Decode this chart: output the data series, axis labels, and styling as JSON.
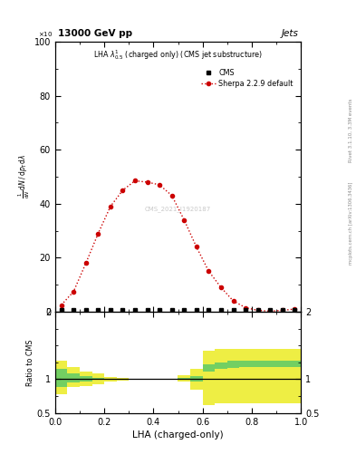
{
  "title_left": "13000 GeV pp",
  "title_right": "Jets",
  "plot_title": "LHA $\\lambda^{1}_{0.5}$ (charged only) (CMS jet substructure)",
  "watermark": "CMS_2021_I1920187",
  "rivet_label": "Rivet 3.1.10, 3.3M events",
  "mcplots_label": "mcplots.cern.ch [arXiv:1306.3436]",
  "xlabel": "LHA (charged-only)",
  "ylabel": "$\\frac{1}{\\mathrm{d}N}\\,/\\,\\mathrm{d}p_\\mathrm{T}\\,\\mathrm{d}N\\,/\\,\\mathrm{d}\\lambda$",
  "ylabel2": "Ratio to CMS",
  "xlim": [
    0,
    1
  ],
  "ylim_main": [
    0,
    100
  ],
  "ylim_ratio": [
    0.5,
    2.0
  ],
  "cms_x": [
    0.025,
    0.075,
    0.125,
    0.175,
    0.225,
    0.275,
    0.325,
    0.375,
    0.425,
    0.475,
    0.525,
    0.575,
    0.625,
    0.675,
    0.725,
    0.775,
    0.825,
    0.875,
    0.925,
    0.975
  ],
  "cms_y": [
    0.5,
    0.5,
    0.5,
    0.5,
    0.5,
    0.5,
    0.5,
    0.5,
    0.5,
    0.5,
    0.5,
    0.5,
    0.5,
    0.5,
    0.5,
    0.5,
    0.5,
    0.5,
    0.5,
    0.5
  ],
  "sherpa_x": [
    0.025,
    0.075,
    0.125,
    0.175,
    0.225,
    0.275,
    0.325,
    0.375,
    0.425,
    0.475,
    0.525,
    0.575,
    0.625,
    0.675,
    0.725,
    0.775,
    0.825,
    0.875,
    0.925,
    0.975
  ],
  "sherpa_y": [
    2.5,
    7.5,
    18.0,
    29.0,
    39.0,
    45.0,
    48.5,
    48.0,
    47.0,
    43.0,
    34.0,
    24.0,
    15.0,
    9.0,
    4.0,
    1.5,
    0.5,
    0.2,
    0.5,
    1.0
  ],
  "ratio_x_edges": [
    0.0,
    0.05,
    0.1,
    0.15,
    0.2,
    0.25,
    0.3,
    0.35,
    0.4,
    0.45,
    0.5,
    0.55,
    0.6,
    0.65,
    0.7,
    0.75,
    0.8,
    0.85,
    0.9,
    0.95,
    1.0
  ],
  "ratio_green_lo": [
    0.88,
    0.95,
    0.97,
    0.99,
    1.0,
    1.0,
    1.0,
    1.0,
    1.0,
    1.0,
    1.0,
    0.97,
    1.12,
    1.15,
    1.17,
    1.18,
    1.18,
    1.18,
    1.18,
    1.18
  ],
  "ratio_green_hi": [
    1.15,
    1.08,
    1.05,
    1.02,
    1.01,
    1.0,
    1.0,
    1.0,
    1.0,
    1.0,
    1.02,
    1.05,
    1.22,
    1.25,
    1.27,
    1.27,
    1.27,
    1.27,
    1.27,
    1.27
  ],
  "ratio_yellow_lo": [
    0.78,
    0.88,
    0.9,
    0.93,
    0.97,
    0.98,
    0.99,
    0.99,
    0.99,
    0.99,
    0.97,
    0.85,
    0.62,
    0.65,
    0.65,
    0.65,
    0.65,
    0.65,
    0.65,
    0.65
  ],
  "ratio_yellow_hi": [
    1.28,
    1.18,
    1.12,
    1.08,
    1.03,
    1.02,
    1.01,
    1.01,
    1.01,
    1.01,
    1.06,
    1.15,
    1.42,
    1.45,
    1.45,
    1.45,
    1.45,
    1.45,
    1.45,
    1.45
  ],
  "color_cms": "#000000",
  "color_sherpa": "#cc0000",
  "color_green": "#66cc66",
  "color_yellow": "#eeee44",
  "background_color": "#ffffff"
}
